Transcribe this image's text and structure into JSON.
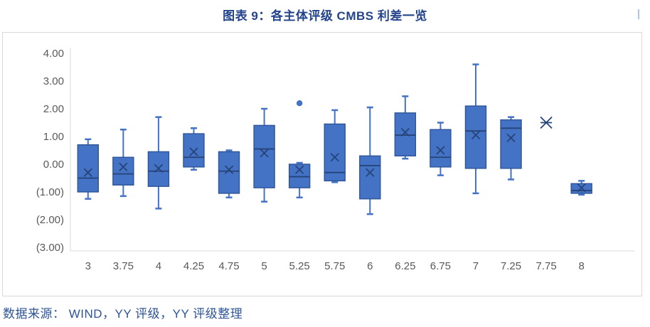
{
  "header": {
    "title": "图表 9：各主体评级 CMBS 利差一览"
  },
  "footer": {
    "source": "数据来源： WIND，YY 评级，YY 评级整理"
  },
  "colors": {
    "title_text": "#23448C",
    "source_text": "#2E5496",
    "box_fill": "#4472C4",
    "box_border": "#2E5597",
    "median_line": "#264478",
    "mean_marker": "#264478",
    "whisker": "#4472C4",
    "outlier": "#4472C4",
    "axis_line": "#D9D9D9",
    "tick_label": "#595959",
    "panel_border": "#D9D9D9"
  },
  "chart_data": {
    "type": "boxplot",
    "title": "图表 9：各主体评级 CMBS 利差一览",
    "xlabel": "",
    "ylabel": "",
    "grid": false,
    "legend": "none",
    "ylim": [
      -3,
      4
    ],
    "y_ticks": [
      {
        "value": 4,
        "label": "4.00"
      },
      {
        "value": 3,
        "label": "3.00"
      },
      {
        "value": 2,
        "label": "2.00"
      },
      {
        "value": 1,
        "label": "1.00"
      },
      {
        "value": 0,
        "label": "0.00"
      },
      {
        "value": -1,
        "label": "(1.00)"
      },
      {
        "value": -2,
        "label": "(2.00)"
      },
      {
        "value": -3,
        "label": "(3.00)"
      }
    ],
    "categories": [
      "3",
      "3.75",
      "4",
      "4.25",
      "4.75",
      "5",
      "5.25",
      "5.75",
      "6",
      "6.25",
      "6.75",
      "7",
      "7.25",
      "7.75",
      "8"
    ],
    "x_slot_count": 16,
    "series": [
      {
        "category": "3",
        "min": -1.25,
        "q1": -1.0,
        "median": -0.5,
        "q3": 0.7,
        "max": 0.9,
        "mean": -0.3,
        "outliers": []
      },
      {
        "category": "3.75",
        "min": -1.15,
        "q1": -0.75,
        "median": -0.35,
        "q3": 0.25,
        "max": 1.25,
        "mean": -0.1,
        "outliers": []
      },
      {
        "category": "4",
        "min": -1.6,
        "q1": -0.8,
        "median": -0.25,
        "q3": 0.45,
        "max": 1.7,
        "mean": -0.15,
        "outliers": []
      },
      {
        "category": "4.25",
        "min": -0.2,
        "q1": -0.1,
        "median": 0.25,
        "q3": 1.1,
        "max": 1.3,
        "mean": 0.45,
        "outliers": []
      },
      {
        "category": "4.75",
        "min": -1.2,
        "q1": -1.05,
        "median": -0.25,
        "q3": 0.45,
        "max": 0.5,
        "mean": -0.2,
        "outliers": []
      },
      {
        "category": "5",
        "min": -1.35,
        "q1": -0.85,
        "median": 0.55,
        "q3": 1.4,
        "max": 2.0,
        "mean": 0.4,
        "outliers": []
      },
      {
        "category": "5.25",
        "min": -1.2,
        "q1": -0.85,
        "median": -0.45,
        "q3": 0.0,
        "max": 0.05,
        "mean": -0.2,
        "outliers": [
          2.2
        ]
      },
      {
        "category": "5.75",
        "min": -0.65,
        "q1": -0.6,
        "median": -0.3,
        "q3": 1.45,
        "max": 1.95,
        "mean": 0.25,
        "outliers": []
      },
      {
        "category": "6",
        "min": -1.8,
        "q1": -1.25,
        "median": -0.05,
        "q3": 0.3,
        "max": 2.05,
        "mean": -0.3,
        "outliers": []
      },
      {
        "category": "6.25",
        "min": 0.2,
        "q1": 0.3,
        "median": 1.05,
        "q3": 1.85,
        "max": 2.45,
        "mean": 1.15,
        "outliers": []
      },
      {
        "category": "6.75",
        "min": -0.4,
        "q1": -0.1,
        "median": 0.25,
        "q3": 1.25,
        "max": 1.5,
        "mean": 0.5,
        "outliers": []
      },
      {
        "category": "7",
        "min": -1.05,
        "q1": -0.15,
        "median": 1.2,
        "q3": 2.1,
        "max": 3.6,
        "mean": 1.05,
        "outliers": []
      },
      {
        "category": "7.25",
        "min": -0.55,
        "q1": -0.15,
        "median": 1.3,
        "q3": 1.6,
        "max": 1.7,
        "mean": 0.95,
        "outliers": []
      },
      {
        "category": "7.75",
        "min": 1.5,
        "q1": 1.5,
        "median": 1.5,
        "q3": 1.5,
        "max": 1.5,
        "mean": 1.5,
        "outliers": []
      },
      {
        "category": "8",
        "min": -1.1,
        "q1": -1.05,
        "median": -0.95,
        "q3": -0.7,
        "max": -0.6,
        "mean": -0.85,
        "outliers": []
      }
    ]
  }
}
